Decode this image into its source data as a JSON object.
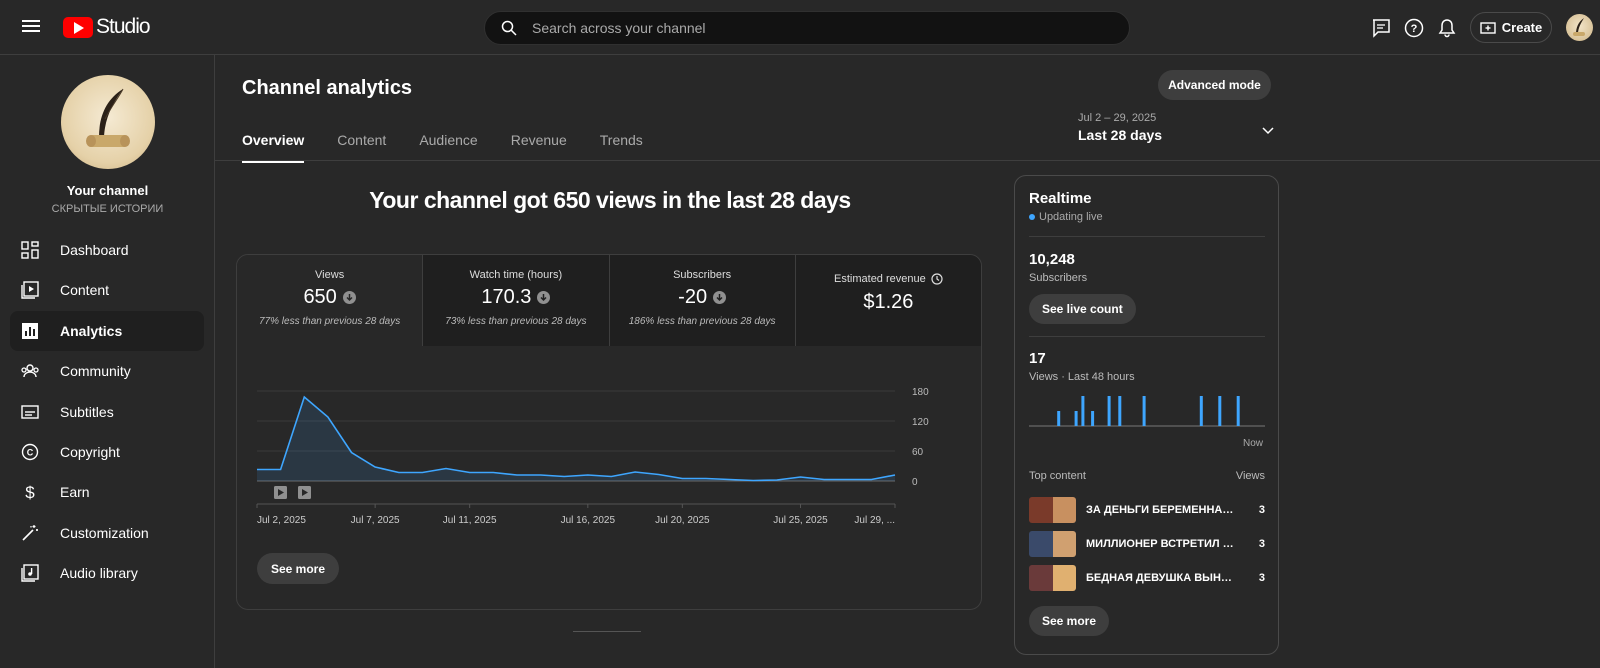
{
  "header": {
    "logo_text": "Studio",
    "search_placeholder": "Search across your channel",
    "create_label": "Create"
  },
  "sidebar": {
    "channel_title": "Your channel",
    "channel_name": "СКРЫТЫЕ ИСТОРИИ",
    "items": [
      {
        "label": "Dashboard",
        "icon": "dashboard-icon"
      },
      {
        "label": "Content",
        "icon": "content-icon"
      },
      {
        "label": "Analytics",
        "icon": "analytics-icon",
        "active": true
      },
      {
        "label": "Community",
        "icon": "community-icon"
      },
      {
        "label": "Subtitles",
        "icon": "subtitles-icon"
      },
      {
        "label": "Copyright",
        "icon": "copyright-icon"
      },
      {
        "label": "Earn",
        "icon": "dollar-icon"
      },
      {
        "label": "Customization",
        "icon": "magic-wand-icon"
      },
      {
        "label": "Audio library",
        "icon": "audio-library-icon"
      }
    ]
  },
  "page": {
    "title": "Channel analytics",
    "advanced_mode_label": "Advanced mode",
    "tabs": [
      "Overview",
      "Content",
      "Audience",
      "Revenue",
      "Trends"
    ],
    "date_range": "Jul 2 – 29, 2025",
    "date_label": "Last 28 days",
    "headline": "Your channel got 650 views in the last 28 days",
    "see_more_label": "See more"
  },
  "metrics": [
    {
      "title": "Views",
      "value": "650",
      "sub": "77% less than previous 28 days",
      "down": true
    },
    {
      "title": "Watch time (hours)",
      "value": "170.3",
      "sub": "73% less than previous 28 days",
      "down": true
    },
    {
      "title": "Subscribers",
      "value": "-20",
      "sub": "186% less than previous 28 days",
      "down": true
    },
    {
      "title": "Estimated revenue",
      "value": "$1.26",
      "sub": "",
      "down": false
    }
  ],
  "chart_data": {
    "type": "line",
    "x": [
      "Jul 2",
      "Jul 3",
      "Jul 4",
      "Jul 5",
      "Jul 6",
      "Jul 7",
      "Jul 8",
      "Jul 9",
      "Jul 10",
      "Jul 11",
      "Jul 12",
      "Jul 13",
      "Jul 14",
      "Jul 15",
      "Jul 16",
      "Jul 17",
      "Jul 18",
      "Jul 19",
      "Jul 20",
      "Jul 21",
      "Jul 22",
      "Jul 23",
      "Jul 24",
      "Jul 25",
      "Jul 26",
      "Jul 27",
      "Jul 28",
      "Jul 29"
    ],
    "series": [
      {
        "values": [
          23,
          23,
          168,
          128,
          57,
          28,
          17,
          17,
          25,
          17,
          17,
          12,
          12,
          9,
          12,
          9,
          18,
          13,
          5,
          5,
          3,
          1,
          2,
          8,
          3,
          3,
          3,
          12
        ]
      }
    ],
    "x_tick_labels": [
      "Jul 2, 2025",
      "Jul 7, 2025",
      "Jul 11, 2025",
      "Jul 16, 2025",
      "Jul 20, 2025",
      "Jul 25, 2025",
      "Jul 29, ..."
    ],
    "x_tick_index": [
      0,
      5,
      9,
      14,
      18,
      23,
      27
    ],
    "y_ticks": [
      0,
      60,
      120,
      180
    ],
    "ylim": [
      0,
      180
    ],
    "grid": true,
    "accent": "#3ea6ff"
  },
  "realtime": {
    "title": "Realtime",
    "live_label": "Updating live",
    "subscribers_value": "10,248",
    "subscribers_label": "Subscribers",
    "live_count_label": "See live count",
    "views_value": "17",
    "views_label": "Views · Last 48 hours",
    "now_label": "Now",
    "bars": [
      0,
      0,
      0,
      0,
      0,
      0,
      0,
      0,
      0,
      0,
      0,
      0,
      0,
      0,
      0,
      0,
      0,
      0,
      0,
      0,
      0,
      0,
      0,
      0,
      0,
      0,
      0,
      0,
      0,
      1,
      0,
      0,
      0,
      0,
      0,
      0,
      0,
      0,
      0,
      0,
      0,
      0,
      0,
      0,
      0,
      0,
      0,
      1,
      0,
      0,
      0,
      0,
      0,
      0,
      2,
      0,
      0,
      0,
      0,
      0,
      0,
      0,
      0,
      0,
      1,
      0,
      0,
      0,
      0,
      0,
      0,
      0,
      0,
      0,
      0,
      0,
      0,
      0,
      0,
      0,
      0,
      2,
      0,
      0,
      0,
      0,
      0,
      0,
      0,
      0,
      0,
      0,
      2,
      0,
      0,
      0,
      0,
      0,
      0,
      0,
      0,
      0,
      0,
      0,
      0,
      0,
      0,
      0,
      0,
      0,
      0,
      0,
      0,
      0,
      0,
      0,
      0,
      2,
      0,
      0,
      0,
      0,
      0,
      0,
      0,
      0,
      0,
      0,
      0,
      0,
      0,
      0,
      0,
      0,
      0,
      0,
      0,
      0,
      0,
      0,
      0,
      0,
      0,
      0,
      0,
      0,
      0,
      0,
      0,
      0,
      0,
      0,
      0,
      0,
      0,
      0,
      0,
      0,
      0,
      0,
      0,
      0,
      0,
      0,
      0,
      0,
      0,
      0,
      0,
      0,
      0,
      0,
      0,
      0,
      0,
      0,
      2,
      0,
      0,
      0,
      0,
      0,
      0,
      0,
      0,
      0,
      0,
      0,
      0,
      0,
      0,
      0,
      0,
      0,
      0,
      2,
      0,
      0,
      0,
      0,
      0,
      0,
      0,
      0,
      0,
      0,
      0,
      0,
      0,
      0,
      0,
      0,
      0,
      0,
      2,
      0,
      0,
      0,
      0,
      0,
      0,
      0,
      0,
      0,
      0,
      0,
      0,
      0,
      0,
      0,
      0,
      0,
      0,
      0,
      0,
      0,
      0,
      0,
      0,
      0
    ],
    "top_content_label": "Top content",
    "views_col_label": "Views",
    "top_content": [
      {
        "title": "ЗА ДЕНЬГИ БЕРЕМЕННАЯ ...",
        "views": "3",
        "c1": "#7a3a2a",
        "c2": "#c89060"
      },
      {
        "title": "МИЛЛИОНЕР ВСТРЕТИЛ СВ...",
        "views": "3",
        "c1": "#3a4a6a",
        "c2": "#d0a070"
      },
      {
        "title": "БЕДНАЯ ДЕВУШКА ВЫНУЖ...",
        "views": "3",
        "c1": "#6a3a3a",
        "c2": "#e0b070"
      }
    ],
    "see_more_label": "See more"
  }
}
